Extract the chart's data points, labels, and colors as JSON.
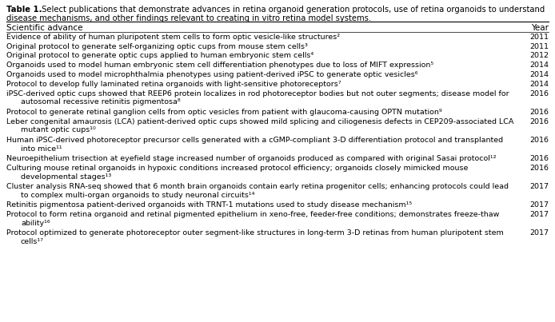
{
  "title_bold": "Table 1.",
  "title_rest_line1": " Select publications that demonstrate advances in retina organoid generation protocols, use of retina organoids to understand",
  "title_rest_line2": "disease mechanisms, and other findings relevant to creating in vitro retina model systems.",
  "header": [
    "Scientific advance",
    "Year"
  ],
  "rows": [
    [
      "Evidence of ability of human pluripotent stem cells to form optic vesicle-like structures²",
      "2011"
    ],
    [
      "Original protocol to generate self-organizing optic cups from mouse stem cells³",
      "2011"
    ],
    [
      "Original protocol to generate optic cups applied to human embryonic stem cells⁴",
      "2012"
    ],
    [
      "Organoids used to model human embryonic stem cell differentiation phenotypes due to loss of MIFT expression⁵",
      "2014"
    ],
    [
      "Organoids used to model microphthalmia phenotypes using patient-derived iPSC to generate optic vesicles⁶",
      "2014"
    ],
    [
      "Protocol to develop fully laminated retina organoids with light-sensitive photoreceptors⁷",
      "2014"
    ],
    [
      "iPSC-derived optic cups showed that REEP6 protein localizes in rod photoreceptor bodies but not outer segments; disease model for\nautosomal recessive retinitis pigmentosa⁸",
      "2016"
    ],
    [
      "Protocol to generate retinal ganglion cells from optic vesicles from patient with glaucoma-causing OPTN mutation⁹",
      "2016"
    ],
    [
      "Leber congenital amaurosis (LCA) patient-derived optic cups showed mild splicing and ciliogenesis defects in CEP209-associated LCA\nmutant optic cups¹⁰",
      "2016"
    ],
    [
      "Human iPSC-derived photoreceptor precursor cells generated with a cGMP-compliant 3-D differentiation protocol and transplanted\ninto mice¹¹",
      "2016"
    ],
    [
      "Neuroepithelium trisection at eyefield stage increased number of organoids produced as compared with original Sasai protocol¹²",
      "2016"
    ],
    [
      "Culturing mouse retinal organoids in hypoxic conditions increased protocol efficiency; organoids closely mimicked mouse\ndevelopmental stages¹³",
      "2016"
    ],
    [
      "Cluster analysis RNA-seq showed that 6 month brain organoids contain early retina progenitor cells; enhancing protocols could lead\nto complex multi-organ organoids to study neuronal circuits¹⁴",
      "2017"
    ],
    [
      "Retinitis pigmentosa patient-derived organoids with TRNT-1 mutations used to study disease mechanism¹⁵",
      "2017"
    ],
    [
      "Protocol to form retina organoid and retinal pigmented epithelium in xeno-free, feeder-free conditions; demonstrates freeze-thaw\nability¹⁶",
      "2017"
    ],
    [
      "Protocol optimized to generate photoreceptor outer segment-like structures in long-term 3-D retinas from human pluripotent stem\ncells¹⁷",
      "2017"
    ]
  ],
  "bg_color": "#ffffff",
  "font_size": 6.8,
  "title_font_size": 7.2,
  "header_font_size": 7.5,
  "line_color": "#000000",
  "text_color": "#000000"
}
